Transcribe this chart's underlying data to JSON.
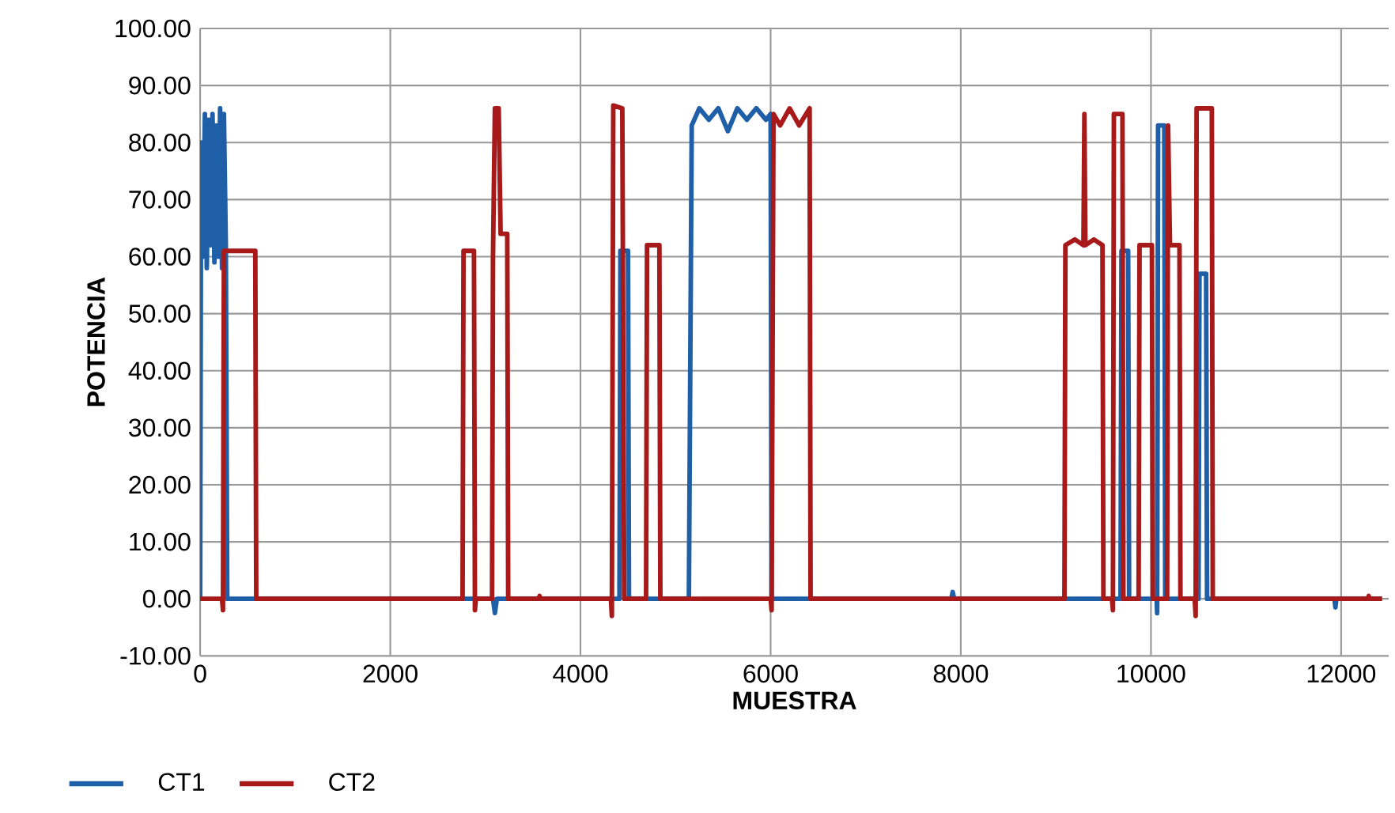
{
  "chart_data": {
    "type": "line",
    "xlabel": "MUESTRA",
    "ylabel": "POTENCIA",
    "series": [
      {
        "name": "CT1",
        "color": "#1f5fa8",
        "x": [
          0,
          10,
          30,
          50,
          70,
          90,
          110,
          130,
          150,
          170,
          190,
          210,
          230,
          250,
          270,
          285,
          3080,
          3100,
          3120,
          4410,
          4420,
          4500,
          4510,
          5140,
          5170,
          5250,
          5350,
          5450,
          5550,
          5650,
          5750,
          5850,
          5950,
          6000,
          6010,
          7900,
          7915,
          7930,
          9680,
          9690,
          9760,
          9770,
          10060,
          10065,
          10075,
          10140,
          10150,
          10500,
          10510,
          10580,
          10590,
          11930,
          11940,
          11950,
          12430
        ],
        "values": [
          0,
          80,
          60,
          85,
          58,
          84,
          62,
          85,
          59,
          83,
          60,
          86,
          58,
          85,
          62,
          0,
          0,
          -2.5,
          0,
          0,
          61,
          61,
          0,
          0,
          83,
          86,
          84,
          86,
          82,
          86,
          84,
          86,
          84,
          85,
          0,
          0,
          1.2,
          0,
          0,
          61,
          61,
          0,
          0,
          -2.5,
          83,
          83,
          0,
          0,
          57,
          57,
          0,
          0,
          -1.5,
          0,
          0
        ]
      },
      {
        "name": "CT2",
        "color": "#a81a1a",
        "x": [
          0,
          230,
          240,
          250,
          580,
          590,
          2760,
          2770,
          2880,
          2890,
          2900,
          3070,
          3080,
          3100,
          3140,
          3160,
          3230,
          3240,
          3560,
          3570,
          3580,
          4320,
          4330,
          4345,
          4440,
          4460,
          4690,
          4700,
          4830,
          4840,
          6000,
          6010,
          6030,
          6100,
          6200,
          6300,
          6410,
          6420,
          9090,
          9100,
          9200,
          9290,
          9300,
          9310,
          9400,
          9490,
          9500,
          9590,
          9600,
          9610,
          9700,
          9710,
          9870,
          9880,
          10010,
          10020,
          10170,
          10180,
          10200,
          10300,
          10310,
          10460,
          10470,
          10480,
          10640,
          10650,
          12280,
          12290,
          12300,
          12430
        ],
        "values": [
          0,
          0,
          -2,
          61,
          61,
          0,
          0,
          61,
          61,
          -2,
          0,
          0,
          60,
          86,
          86,
          64,
          64,
          0,
          0,
          0.5,
          0,
          0,
          -3,
          86.5,
          86,
          0,
          0,
          62,
          62,
          0,
          0,
          -2,
          85,
          83,
          86,
          83,
          86,
          0,
          0,
          62,
          63,
          62,
          85,
          62,
          63,
          62,
          0,
          0,
          -2,
          85,
          85,
          0,
          0,
          62,
          62,
          0,
          0,
          83,
          62,
          62,
          0,
          0,
          -3,
          86,
          86,
          0,
          0,
          0.5,
          0,
          0
        ]
      }
    ],
    "xlim": [
      0,
      12500
    ],
    "ylim": [
      -10,
      100
    ],
    "xticks": [
      0,
      2000,
      4000,
      6000,
      8000,
      10000,
      12000
    ],
    "yticks": [
      {
        "value": -10,
        "label": "-10.00"
      },
      {
        "value": 0,
        "label": "0.00"
      },
      {
        "value": 10,
        "label": "10.00"
      },
      {
        "value": 20,
        "label": "20.00"
      },
      {
        "value": 30,
        "label": "30.00"
      },
      {
        "value": 40,
        "label": "40.00"
      },
      {
        "value": 50,
        "label": "50.00"
      },
      {
        "value": 60,
        "label": "60.00"
      },
      {
        "value": 70,
        "label": "70.00"
      },
      {
        "value": 80,
        "label": "80.00"
      },
      {
        "value": 90,
        "label": "90.00"
      },
      {
        "value": 100,
        "label": "100.00"
      }
    ],
    "grid": true,
    "legend": "bottom left",
    "marker": "none",
    "line_style": "solid"
  }
}
